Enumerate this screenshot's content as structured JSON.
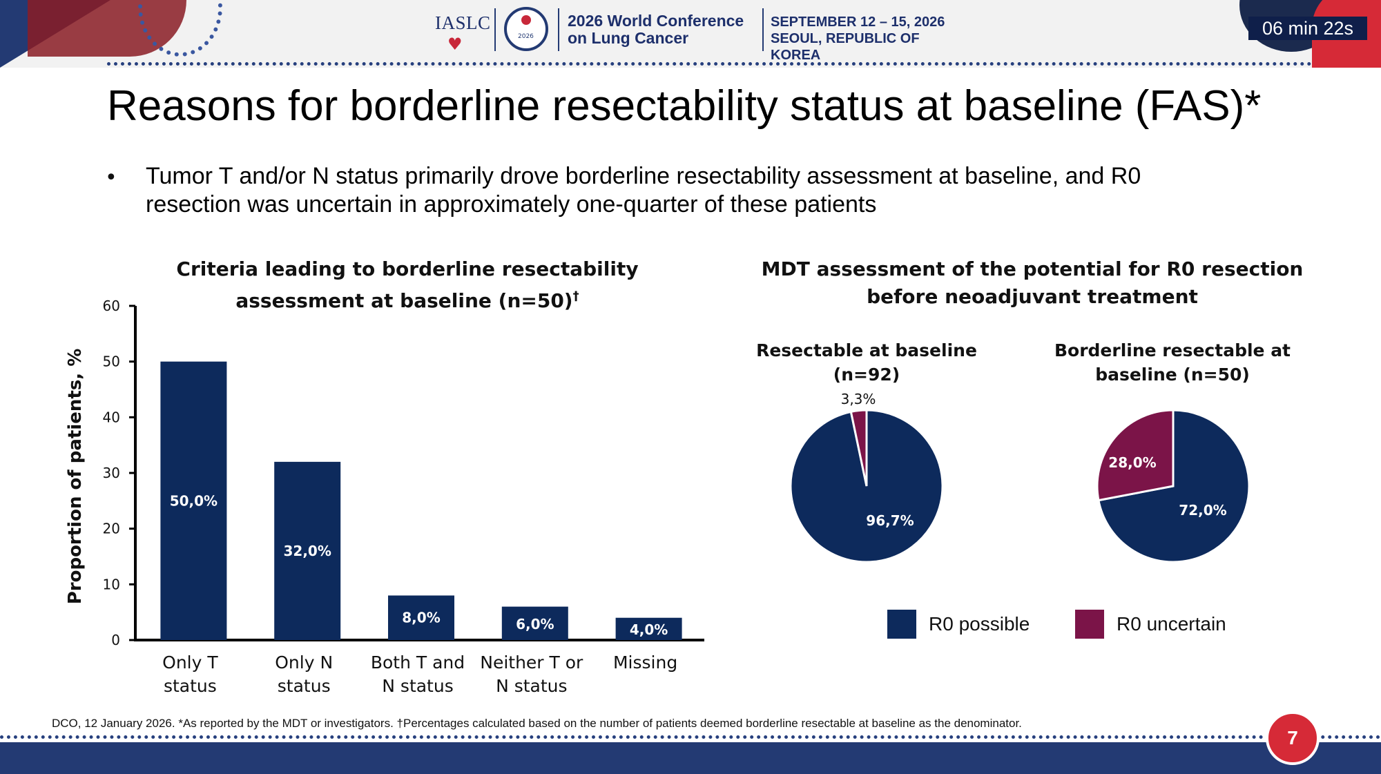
{
  "header": {
    "org_logo_text": "IASLC",
    "conference_name": "2026 World Conference on Lung Cancer",
    "conference_dates": "SEPTEMBER 12 – 15, 2026",
    "conference_location": "SEOUL, REPUBLIC OF KOREA",
    "timer": "06 min 22s"
  },
  "slide": {
    "title": "Reasons for borderline resectability status at baseline (FAS)*",
    "bullet": "Tumor T and/or N status primarily drove borderline resectability assessment at baseline, and R0 resection was uncertain in approximately one-quarter of these patients"
  },
  "pie_section": {
    "title": "MDT assessment of the potential for R0 resection before neoadjuvant treatment"
  },
  "legend": {
    "items": [
      {
        "label": "R0 possible",
        "color": "#0d2a5c"
      },
      {
        "label": "R0 uncertain",
        "color": "#7b1448"
      }
    ]
  },
  "chart_data": [
    {
      "type": "bar",
      "title": "Criteria leading to borderline resectability assessment at baseline (n=50)†",
      "ylabel": "Proportion of patients, %",
      "ylim": [
        0,
        60
      ],
      "yticks": [
        0,
        10,
        20,
        30,
        40,
        50,
        60
      ],
      "categories": [
        [
          "Only T",
          "status"
        ],
        [
          "Only N",
          "status"
        ],
        [
          "Both T and",
          "N status"
        ],
        [
          "Neither T or",
          "N status"
        ],
        [
          "Missing"
        ]
      ],
      "values": [
        50,
        32,
        8,
        6,
        4
      ],
      "data_labels": [
        "50,0%",
        "32,0%",
        "8,0%",
        "6,0%",
        "4,0%"
      ],
      "color": "#0d2a5c",
      "grid": false
    },
    {
      "type": "pie",
      "title": "Resectable at baseline (n=92)",
      "slices": [
        {
          "label": "R0 possible",
          "value": 96.7,
          "display": "96,7%",
          "color": "#0d2a5c"
        },
        {
          "label": "R0 uncertain",
          "value": 3.3,
          "display": "3,3%",
          "color": "#7b1448"
        }
      ]
    },
    {
      "type": "pie",
      "title": "Borderline resectable at baseline (n=50)",
      "slices": [
        {
          "label": "R0 possible",
          "value": 72.0,
          "display": "72,0%",
          "color": "#0d2a5c"
        },
        {
          "label": "R0 uncertain",
          "value": 28.0,
          "display": "28,0%",
          "color": "#7b1448"
        }
      ]
    }
  ],
  "footer": {
    "footnote": "DCO, 12 January 2026. *As reported by the MDT or investigators. †Percentages calculated based on the number of patients deemed borderline resectable at baseline as the denominator.",
    "page_number": "7"
  }
}
